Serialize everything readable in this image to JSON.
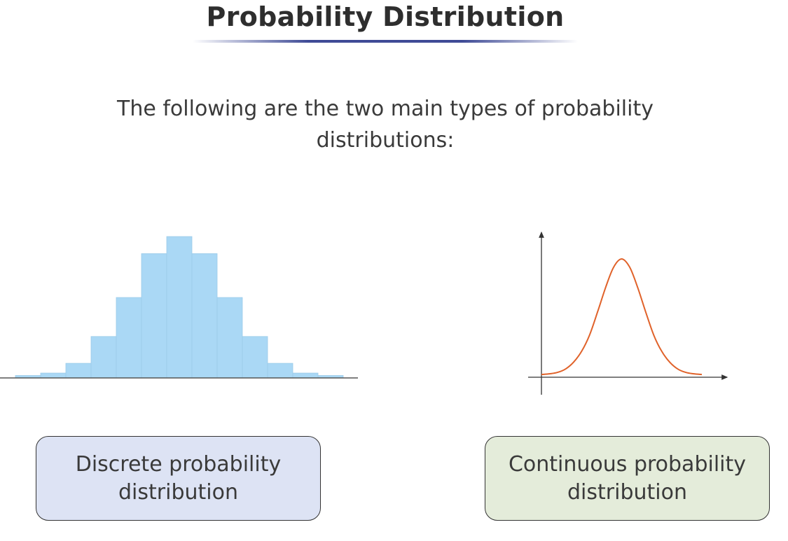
{
  "title": "Probability Distribution",
  "intro_text": "The following are the two main types of probability distributions:",
  "types": {
    "discrete": {
      "label": "Discrete probability distribution",
      "color": "#dde3f4"
    },
    "continuous": {
      "label": "Continuous probability distribution",
      "color": "#e4ecda"
    }
  },
  "chart_data": [
    {
      "type": "bar",
      "values": [
        1,
        2,
        6,
        17,
        33,
        51,
        58,
        51,
        33,
        17,
        6,
        2,
        1
      ],
      "bar_color": "#aad8f5",
      "axis": "x-baseline-only"
    },
    {
      "type": "line",
      "curve": "normal-density",
      "x": [
        0,
        1,
        2,
        3,
        4,
        5,
        6,
        7,
        8,
        9,
        10,
        11,
        12,
        13,
        14,
        15,
        16,
        17,
        18,
        19,
        20
      ],
      "y": [
        1,
        1.5,
        2.5,
        5,
        10,
        18,
        30,
        47,
        65,
        80,
        86,
        80,
        65,
        47,
        30,
        18,
        10,
        5,
        2.5,
        1.5,
        1
      ],
      "line_color": "#e0622a",
      "axes": [
        "x-arrow",
        "y-arrow"
      ]
    }
  ]
}
